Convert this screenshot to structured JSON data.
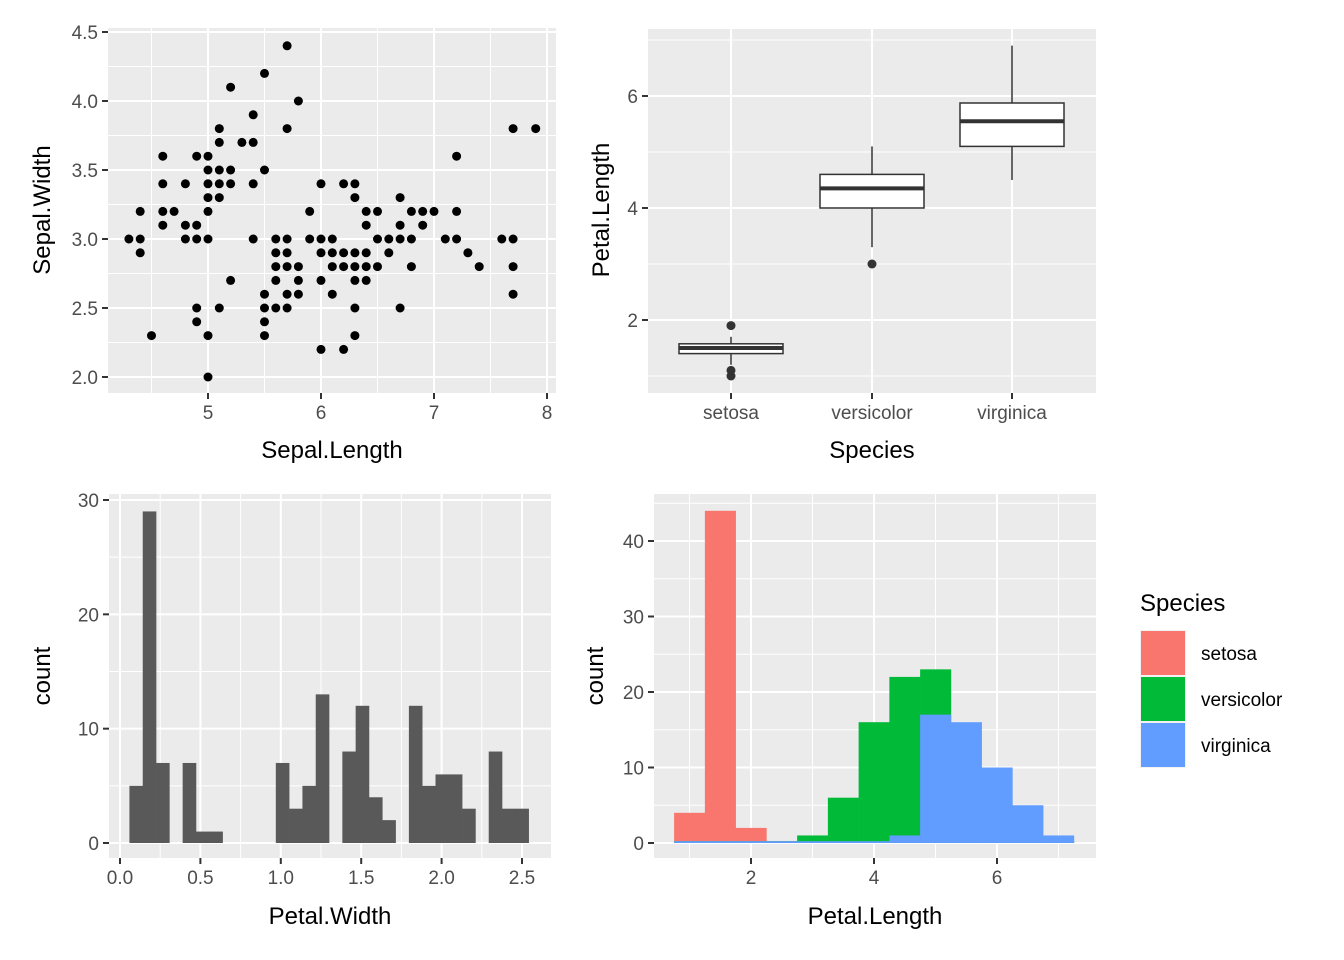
{
  "chart_data": [
    {
      "type": "scatter",
      "title": "",
      "xlabel": "Sepal.Length",
      "ylabel": "Sepal.Width",
      "xlim": [
        4.12,
        8.08
      ],
      "ylim": [
        1.88,
        4.52
      ],
      "xticks": [
        5,
        6,
        7,
        8
      ],
      "xtick_labels": [
        "5",
        "6",
        "7",
        "8"
      ],
      "yticks": [
        2.0,
        2.5,
        3.0,
        3.5,
        4.0,
        4.5
      ],
      "ytick_labels": [
        "2.0",
        "2.5",
        "3.0",
        "3.5",
        "4.0",
        "4.5"
      ],
      "grid": true,
      "point_color": "#000000",
      "points": [
        [
          5.1,
          3.5
        ],
        [
          4.9,
          3.0
        ],
        [
          4.7,
          3.2
        ],
        [
          4.6,
          3.1
        ],
        [
          5.0,
          3.6
        ],
        [
          5.4,
          3.9
        ],
        [
          4.6,
          3.4
        ],
        [
          5.0,
          3.4
        ],
        [
          4.4,
          2.9
        ],
        [
          4.9,
          3.1
        ],
        [
          5.4,
          3.7
        ],
        [
          4.8,
          3.4
        ],
        [
          4.8,
          3.0
        ],
        [
          4.3,
          3.0
        ],
        [
          5.8,
          4.0
        ],
        [
          5.7,
          4.4
        ],
        [
          5.4,
          3.9
        ],
        [
          5.1,
          3.5
        ],
        [
          5.7,
          3.8
        ],
        [
          5.1,
          3.8
        ],
        [
          5.4,
          3.4
        ],
        [
          5.1,
          3.7
        ],
        [
          4.6,
          3.6
        ],
        [
          5.1,
          3.3
        ],
        [
          4.8,
          3.4
        ],
        [
          5.0,
          3.0
        ],
        [
          5.0,
          3.4
        ],
        [
          5.2,
          3.5
        ],
        [
          5.2,
          3.4
        ],
        [
          4.7,
          3.2
        ],
        [
          4.8,
          3.1
        ],
        [
          5.4,
          3.4
        ],
        [
          5.2,
          4.1
        ],
        [
          5.5,
          4.2
        ],
        [
          4.9,
          3.1
        ],
        [
          5.0,
          3.2
        ],
        [
          5.5,
          3.5
        ],
        [
          4.9,
          3.6
        ],
        [
          4.4,
          3.0
        ],
        [
          5.1,
          3.4
        ],
        [
          5.0,
          3.5
        ],
        [
          4.5,
          2.3
        ],
        [
          4.4,
          3.2
        ],
        [
          5.0,
          3.5
        ],
        [
          5.1,
          3.8
        ],
        [
          4.8,
          3.0
        ],
        [
          5.1,
          3.8
        ],
        [
          4.6,
          3.2
        ],
        [
          5.3,
          3.7
        ],
        [
          5.0,
          3.3
        ],
        [
          7.0,
          3.2
        ],
        [
          6.4,
          3.2
        ],
        [
          6.9,
          3.1
        ],
        [
          5.5,
          2.3
        ],
        [
          6.5,
          2.8
        ],
        [
          5.7,
          2.8
        ],
        [
          6.3,
          3.3
        ],
        [
          4.9,
          2.4
        ],
        [
          6.6,
          2.9
        ],
        [
          5.2,
          2.7
        ],
        [
          5.0,
          2.0
        ],
        [
          5.9,
          3.0
        ],
        [
          6.0,
          2.2
        ],
        [
          6.1,
          2.9
        ],
        [
          5.6,
          2.9
        ],
        [
          6.7,
          3.1
        ],
        [
          5.6,
          3.0
        ],
        [
          5.8,
          2.7
        ],
        [
          6.2,
          2.2
        ],
        [
          5.6,
          2.5
        ],
        [
          5.9,
          3.2
        ],
        [
          6.1,
          2.8
        ],
        [
          6.3,
          2.5
        ],
        [
          6.1,
          2.8
        ],
        [
          6.4,
          2.9
        ],
        [
          6.6,
          3.0
        ],
        [
          6.8,
          2.8
        ],
        [
          6.7,
          3.0
        ],
        [
          6.0,
          2.9
        ],
        [
          5.7,
          2.6
        ],
        [
          5.5,
          2.4
        ],
        [
          5.5,
          2.4
        ],
        [
          5.8,
          2.7
        ],
        [
          6.0,
          2.7
        ],
        [
          5.4,
          3.0
        ],
        [
          6.0,
          3.4
        ],
        [
          6.7,
          3.1
        ],
        [
          6.3,
          2.3
        ],
        [
          5.6,
          3.0
        ],
        [
          5.5,
          2.5
        ],
        [
          5.5,
          2.6
        ],
        [
          6.1,
          3.0
        ],
        [
          5.8,
          2.6
        ],
        [
          5.0,
          2.3
        ],
        [
          5.6,
          2.7
        ],
        [
          5.7,
          3.0
        ],
        [
          5.7,
          2.9
        ],
        [
          6.2,
          2.9
        ],
        [
          5.1,
          2.5
        ],
        [
          5.7,
          2.8
        ],
        [
          6.3,
          3.3
        ],
        [
          5.8,
          2.7
        ],
        [
          7.1,
          3.0
        ],
        [
          6.3,
          2.9
        ],
        [
          6.5,
          3.0
        ],
        [
          7.6,
          3.0
        ],
        [
          4.9,
          2.5
        ],
        [
          7.3,
          2.9
        ],
        [
          6.7,
          2.5
        ],
        [
          7.2,
          3.6
        ],
        [
          6.5,
          3.2
        ],
        [
          6.4,
          2.7
        ],
        [
          6.8,
          3.0
        ],
        [
          5.7,
          2.5
        ],
        [
          5.8,
          2.8
        ],
        [
          6.4,
          3.2
        ],
        [
          6.5,
          3.0
        ],
        [
          7.7,
          3.8
        ],
        [
          7.7,
          2.6
        ],
        [
          6.0,
          2.2
        ],
        [
          6.9,
          3.2
        ],
        [
          5.6,
          2.8
        ],
        [
          7.7,
          2.8
        ],
        [
          6.3,
          2.7
        ],
        [
          6.7,
          3.3
        ],
        [
          7.2,
          3.2
        ],
        [
          6.2,
          2.8
        ],
        [
          6.1,
          3.0
        ],
        [
          6.4,
          2.8
        ],
        [
          7.2,
          3.0
        ],
        [
          7.4,
          2.8
        ],
        [
          7.9,
          3.8
        ],
        [
          6.4,
          2.8
        ],
        [
          6.3,
          2.8
        ],
        [
          6.1,
          2.6
        ],
        [
          7.7,
          3.0
        ],
        [
          6.3,
          3.4
        ],
        [
          6.4,
          3.1
        ],
        [
          6.0,
          3.0
        ],
        [
          6.9,
          3.1
        ],
        [
          6.7,
          3.1
        ],
        [
          6.9,
          3.1
        ],
        [
          5.8,
          2.7
        ],
        [
          6.8,
          3.2
        ],
        [
          6.7,
          3.3
        ],
        [
          6.7,
          3.0
        ],
        [
          6.3,
          2.5
        ],
        [
          6.5,
          3.0
        ],
        [
          6.2,
          3.4
        ],
        [
          5.9,
          3.0
        ]
      ]
    },
    {
      "type": "box",
      "title": "",
      "xlabel": "Species",
      "ylabel": "Petal.Length",
      "ylim": [
        0.7,
        7.2
      ],
      "categories": [
        "setosa",
        "versicolor",
        "virginica"
      ],
      "yticks": [
        2,
        4,
        6
      ],
      "ytick_labels": [
        "2",
        "4",
        "6"
      ],
      "grid": true,
      "boxes": [
        {
          "category": "setosa",
          "lower_whisker": 1.2,
          "q1": 1.4,
          "median": 1.5,
          "q3": 1.575,
          "upper_whisker": 1.7,
          "outliers": [
            1.0,
            1.1,
            1.9
          ]
        },
        {
          "category": "versicolor",
          "lower_whisker": 3.3,
          "q1": 4.0,
          "median": 4.35,
          "q3": 4.6,
          "upper_whisker": 5.1,
          "outliers": [
            3.0
          ]
        },
        {
          "category": "virginica",
          "lower_whisker": 4.5,
          "q1": 5.1,
          "median": 5.55,
          "q3": 5.875,
          "upper_whisker": 6.9,
          "outliers": []
        }
      ]
    },
    {
      "type": "bar",
      "subtype": "histogram",
      "title": "",
      "xlabel": "Petal.Width",
      "ylabel": "count",
      "xlim": [
        -0.08,
        2.68
      ],
      "ylim": [
        -1.5,
        31
      ],
      "xticks": [
        0.0,
        0.5,
        1.0,
        1.5,
        2.0,
        2.5
      ],
      "xtick_labels": [
        "0.0",
        "0.5",
        "1.0",
        "1.5",
        "2.0",
        "2.5"
      ],
      "yticks": [
        0,
        10,
        20,
        30
      ],
      "ytick_labels": [
        "0",
        "10",
        "20",
        "30"
      ],
      "grid": true,
      "bar_color": "#595959",
      "bins": 30,
      "bin_first_center": 0.1,
      "bin_last_center": 2.5,
      "values": [
        5,
        29,
        7,
        0,
        7,
        1,
        1,
        0,
        0,
        0,
        0,
        7,
        3,
        5,
        13,
        0,
        8,
        12,
        4,
        2,
        0,
        12,
        5,
        6,
        6,
        3,
        0,
        8,
        3,
        3
      ]
    },
    {
      "type": "bar",
      "subtype": "histogram-identity-overlay",
      "title": "",
      "xlabel": "Petal.Length",
      "ylabel": "count",
      "xlim": [
        0.42,
        7.58
      ],
      "ylim": [
        -2.2,
        46.2
      ],
      "xticks": [
        2,
        4,
        6
      ],
      "xtick_labels": [
        "2",
        "4",
        "6"
      ],
      "yticks": [
        0,
        10,
        20,
        30,
        40
      ],
      "ytick_labels": [
        "0",
        "10",
        "20",
        "30",
        "40"
      ],
      "grid": true,
      "bin_edges": [
        0.75,
        1.25,
        1.75,
        2.25,
        2.75,
        3.25,
        3.75,
        4.25,
        4.75,
        5.25,
        5.75,
        6.25,
        6.75,
        7.25
      ],
      "series": [
        {
          "name": "setosa",
          "color": "#F8766D",
          "values": [
            4,
            44,
            2,
            0,
            0,
            0,
            0,
            0,
            0,
            0,
            0,
            0,
            0
          ]
        },
        {
          "name": "versicolor",
          "color": "#00BA38",
          "values": [
            0,
            0,
            0,
            0,
            1,
            6,
            16,
            22,
            23,
            0,
            0,
            0,
            0
          ]
        },
        {
          "name": "virginica",
          "color": "#619CFF",
          "values": [
            0,
            0,
            0,
            0,
            0,
            0,
            0,
            1,
            17,
            16,
            10,
            5,
            1
          ]
        }
      ],
      "legend": {
        "title": "Species",
        "placement": "right",
        "entries": [
          "setosa",
          "versicolor",
          "virginica"
        ]
      }
    }
  ]
}
